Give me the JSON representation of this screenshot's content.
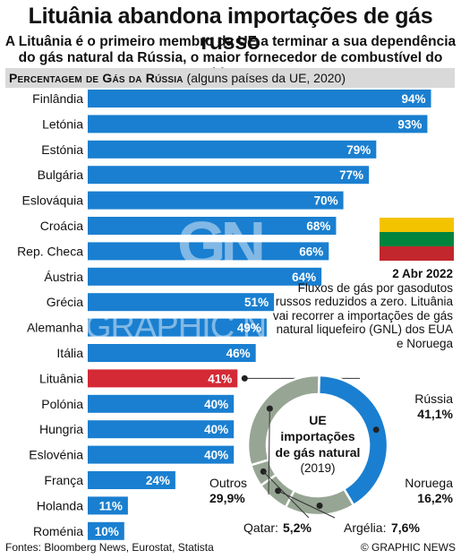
{
  "title": "Lituânia abandona importações de gás russo",
  "subtitle_line1": "A Lituânia é o primeiro membro da UE a terminar a sua dependência",
  "subtitle_line2": "do gás natural da Rússia, o maior fornecedor de combustível do bloco",
  "header": {
    "label": "Percentagem de Gás da Rússia",
    "qualifier": "(alguns países da UE, 2020)"
  },
  "colors": {
    "bar": "#1a7fd0",
    "highlight": "#d42a35",
    "donut_outer": "#1a7fd0",
    "donut_inner": "#97a694",
    "header_bg": "#d9d9d9"
  },
  "chart_data": [
    {
      "type": "bar",
      "orientation": "horizontal",
      "title": "Percentagem de Gás da Rússia",
      "categories": [
        "Finlândia",
        "Letónia",
        "Estónia",
        "Bulgária",
        "Eslováquia",
        "Croácia",
        "Rep. Checa",
        "Áustria",
        "Grécia",
        "Alemanha",
        "Itália",
        "Lituânia",
        "Polónia",
        "Hungria",
        "Eslovénia",
        "França",
        "Holanda",
        "Roménia"
      ],
      "values": [
        94,
        93,
        79,
        77,
        70,
        68,
        66,
        64,
        51,
        49,
        46,
        41,
        40,
        40,
        40,
        24,
        11,
        10
      ],
      "labels": [
        "94%",
        "93%",
        "79%",
        "77%",
        "70%",
        "68%",
        "66%",
        "64%",
        "51%",
        "49%",
        "46%",
        "41%",
        "40%",
        "40%",
        "40%",
        "24%",
        "11%",
        "10%"
      ],
      "highlight": "Lituânia",
      "xlim": [
        0,
        100
      ]
    },
    {
      "type": "pie",
      "title": "UE importações de gás natural",
      "year": "(2019)",
      "categories": [
        "Rússia",
        "Noruega",
        "Argélia",
        "Qatar",
        "Outros"
      ],
      "values": [
        41.1,
        16.2,
        7.6,
        5.2,
        29.9
      ],
      "labels": [
        "41,1%",
        "16,2%",
        "7,6%",
        "5,2%",
        "29,9%"
      ]
    }
  ],
  "donut": {
    "center_l1": "UE",
    "center_l2": "importações",
    "center_l3": "de gás natural",
    "center_l4": "(2019)",
    "russia_name": "Rússia",
    "russia_value": "41,1%",
    "norway_name": "Noruega",
    "norway_value": "16,2%",
    "algeria_text": "Argélia: ",
    "algeria_value": "7,6%",
    "qatar_text": "Qatar: ",
    "qatar_value": "5,2%",
    "others_name": "Outros",
    "others_value": "29,9%"
  },
  "note": {
    "date": "2 Abr 2022",
    "text": "Fluxos de gás por gasodutos russos reduzidos a zero. Lituânia vai recorrer a importações de gás natural liquefeiro (GNL) dos EUA e Noruega"
  },
  "flag": {
    "colors": [
      "#f4c300",
      "#00843e",
      "#c1272d"
    ]
  },
  "footer": {
    "sources": "Fontes: Bloomberg News, Eurostat, Statista",
    "credit": "© GRAPHIC NEWS"
  },
  "watermark": {
    "logo": "GN",
    "text": "GRAPHIC NEWS"
  }
}
